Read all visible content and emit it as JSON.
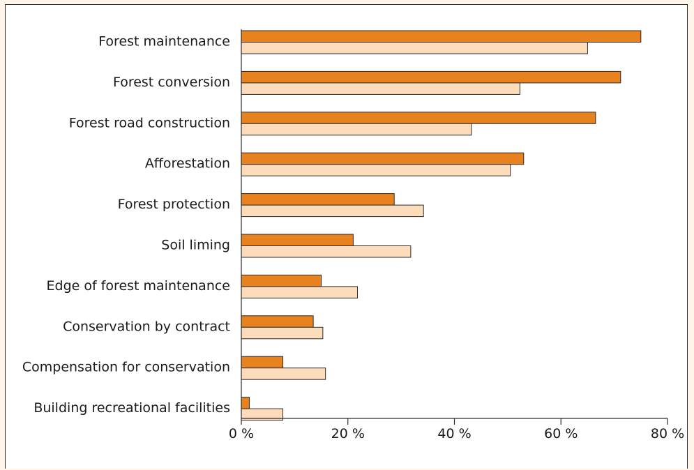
{
  "chart_data": {
    "type": "bar",
    "orientation": "horizontal",
    "categories": [
      "Forest maintenance",
      "Forest conversion",
      "Forest road construction",
      "Afforestation",
      "Forest protection",
      "Soil liming",
      "Edge of forest maintenance",
      "Conservation by contract",
      "Compensation for conservation",
      "Building recreational facilities"
    ],
    "series": [
      {
        "color": "#e8821e",
        "values": [
          75,
          71.2,
          66.5,
          53,
          28.7,
          21,
          15,
          13.5,
          7.8,
          1.5
        ]
      },
      {
        "color": "#fddcbc",
        "values": [
          65,
          52.3,
          43.2,
          50.5,
          34.2,
          31.8,
          21.8,
          15.3,
          15.8,
          7.8
        ]
      }
    ],
    "xlim": [
      0,
      80
    ],
    "xticks": [
      0,
      20,
      40,
      60,
      80
    ],
    "xtick_labels": [
      "0 %",
      "20 %",
      "40 %",
      "60 %",
      "80 %"
    ],
    "title": "",
    "xlabel": "",
    "ylabel": "",
    "grid": false,
    "legend": "none"
  }
}
